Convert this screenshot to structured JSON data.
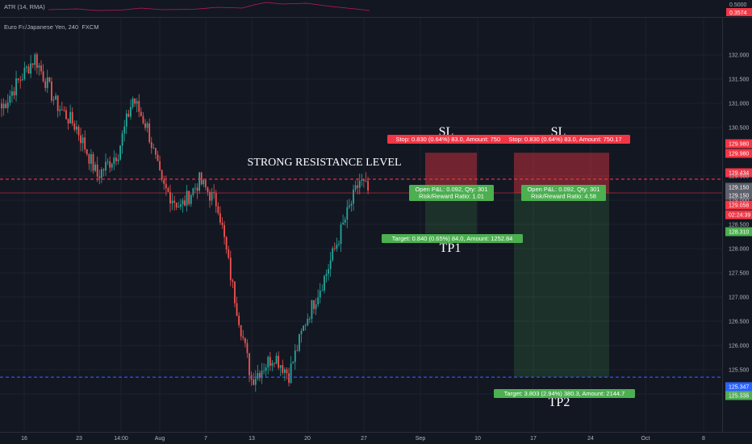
{
  "indicator": {
    "label": "ATR (14, RMA)",
    "axis_ticks": [
      "0.5000"
    ],
    "current_value": "0.3574",
    "current_value_color": "#f23645",
    "line_color": "#c2185b"
  },
  "chart_data": {
    "type": "candlestick",
    "title": "Euro Fx/Japanese Yen, 240, FXCM",
    "symbol": "Euro Fx/Japanese Yen",
    "interval": "240",
    "source": "FXCM",
    "ylim": [
      124.8,
      132.3
    ],
    "yticks": [
      "125.000",
      "125.500",
      "126.000",
      "126.500",
      "127.000",
      "127.500",
      "128.000",
      "128.500",
      "129.000",
      "129.500",
      "130.500",
      "131.000",
      "131.500",
      "132.000"
    ],
    "xticks": [
      "16",
      "23",
      "14:00",
      "Aug",
      "7",
      "13",
      "20",
      "27",
      "Sep",
      "10",
      "17",
      "24",
      "Oct",
      "8"
    ],
    "price_path": [
      {
        "bar": 0,
        "price": 130.9
      },
      {
        "bar": 8,
        "price": 131.45
      },
      {
        "bar": 16,
        "price": 131.95
      },
      {
        "bar": 26,
        "price": 131.0
      },
      {
        "bar": 36,
        "price": 130.5
      },
      {
        "bar": 46,
        "price": 129.5
      },
      {
        "bar": 56,
        "price": 130.0
      },
      {
        "bar": 63,
        "price": 131.1
      },
      {
        "bar": 70,
        "price": 130.5
      },
      {
        "bar": 77,
        "price": 129.3
      },
      {
        "bar": 86,
        "price": 128.85
      },
      {
        "bar": 95,
        "price": 129.4
      },
      {
        "bar": 104,
        "price": 128.9
      },
      {
        "bar": 111,
        "price": 127.2
      },
      {
        "bar": 120,
        "price": 125.3
      },
      {
        "bar": 131,
        "price": 125.8
      },
      {
        "bar": 138,
        "price": 125.4
      },
      {
        "bar": 146,
        "price": 126.5
      },
      {
        "bar": 156,
        "price": 127.5
      },
      {
        "bar": 165,
        "price": 128.6
      },
      {
        "bar": 172,
        "price": 129.4
      },
      {
        "bar": 176,
        "price": 129.2
      }
    ],
    "horizontal_lines": [
      {
        "name": "resistance",
        "price": 129.434,
        "color": "#f23645",
        "style": "dashed"
      },
      {
        "name": "support",
        "price": 125.347,
        "color": "#2962ff",
        "style": "dashed"
      },
      {
        "name": "last-price",
        "price": 129.15,
        "color": "#f23645",
        "style": "solid"
      }
    ],
    "annotations": [
      {
        "text": "STRONG RESISTANCE LEVEL",
        "color": "#ffffff"
      },
      {
        "text": "SL",
        "color": "#ffffff"
      },
      {
        "text": "SL",
        "color": "#ffffff"
      },
      {
        "text": "TP1",
        "color": "#ffffff"
      },
      {
        "text": "TP2",
        "color": "#ffffff"
      }
    ],
    "positions": [
      {
        "name": "position-1",
        "entry": 129.15,
        "stop": 129.98,
        "target": 128.31,
        "stop_label": "Stop: 0.830 (0.64%) 83.0, Amount: 750.17",
        "pnl_label": "Open P&L: 0.092, Qty: 301",
        "rr_label": "Risk/Reward Ratio: 1.01",
        "target_label": "Target: 0.840 (0.65%) 84.0, Amount: 1252.84"
      },
      {
        "name": "position-2",
        "entry": 129.15,
        "stop": 129.98,
        "target": 125.347,
        "stop_label": "Stop: 0.830 (0.64%) 83.0, Amount: 750.17",
        "pnl_label": "Open P&L: 0.092, Qty: 301",
        "rr_label": "Risk/Reward Ratio: 4.58",
        "target_label": "Target: 3.803 (2.94%) 380.3, Amount: 2144.7"
      }
    ],
    "price_badges": [
      {
        "text": "129.980",
        "color": "#f23645"
      },
      {
        "text": "129.980",
        "color": "#f23645"
      },
      {
        "text": "129.434",
        "color": "#f23645"
      },
      {
        "text": "129.150",
        "color": "#5d606b"
      },
      {
        "text": "129.150",
        "color": "#5d606b"
      },
      {
        "text": "129.058",
        "color": "#f23645"
      },
      {
        "text": "02:24:39",
        "color": "#f23645"
      },
      {
        "text": "128.310",
        "color": "#4caf50"
      },
      {
        "text": "125.347",
        "color": "#2962ff"
      },
      {
        "text": "125.336",
        "color": "#4caf50"
      }
    ],
    "colors": {
      "up": "#26a69a",
      "down": "#ef5350",
      "background": "#131722",
      "grid": "#1e222d"
    }
  }
}
